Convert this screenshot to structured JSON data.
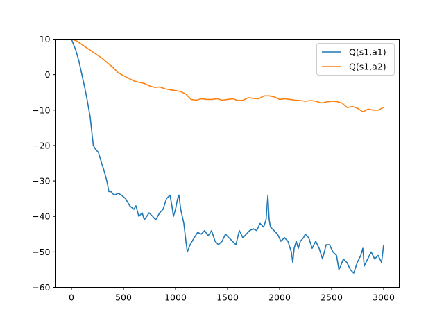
{
  "chart_data": {
    "type": "line",
    "title": "",
    "xlabel": "",
    "ylabel": "",
    "xlim": [
      -150,
      3150
    ],
    "ylim": [
      -60,
      10
    ],
    "grid": false,
    "legend_position": "upper right",
    "x_ticks": [
      0,
      500,
      1000,
      1500,
      2000,
      2500,
      3000
    ],
    "x_tick_labels": [
      "0",
      "500",
      "1000",
      "1500",
      "2000",
      "2500",
      "3000"
    ],
    "y_ticks": [
      10,
      0,
      -10,
      -20,
      -30,
      -40,
      -50,
      -60
    ],
    "y_tick_labels": [
      "10",
      "0",
      "−10",
      "−20",
      "−30",
      "−40",
      "−50",
      "−60"
    ],
    "series": [
      {
        "name": "Q(s1,a1)",
        "color": "#1f77b4",
        "x": [
          0,
          40,
          70,
          100,
          130,
          150,
          180,
          210,
          230,
          260,
          290,
          313,
          340,
          360,
          380,
          410,
          450,
          480,
          520,
          560,
          600,
          620,
          647,
          680,
          700,
          747,
          780,
          810,
          847,
          880,
          913,
          947,
          965,
          980,
          1000,
          1020,
          1033,
          1050,
          1080,
          1100,
          1113,
          1140,
          1180,
          1213,
          1247,
          1280,
          1313,
          1347,
          1380,
          1413,
          1447,
          1480,
          1513,
          1547,
          1580,
          1613,
          1647,
          1680,
          1713,
          1747,
          1780,
          1813,
          1847,
          1870,
          1887,
          1900,
          1913,
          1947,
          1980,
          2013,
          2047,
          2080,
          2113,
          2127,
          2140,
          2160,
          2180,
          2200,
          2230,
          2247,
          2280,
          2313,
          2347,
          2380,
          2413,
          2447,
          2480,
          2513,
          2547,
          2570,
          2587,
          2613,
          2647,
          2680,
          2713,
          2747,
          2780,
          2800,
          2813,
          2847,
          2880,
          2913,
          2947,
          2980,
          3000
        ],
        "y": [
          10,
          7,
          4,
          0,
          -4,
          -7,
          -12,
          -20,
          -21,
          -22,
          -25,
          -27,
          -30,
          -33,
          -33,
          -34,
          -33.5,
          -34,
          -35,
          -37,
          -38,
          -37,
          -40,
          -39,
          -41,
          -39,
          -40,
          -41,
          -39,
          -38,
          -35,
          -34,
          -37,
          -40,
          -38,
          -35,
          -34,
          -38,
          -42,
          -47,
          -50,
          -48,
          -46,
          -44.5,
          -45,
          -44,
          -45.5,
          -44,
          -47,
          -48,
          -47,
          -45,
          -46,
          -47,
          -48,
          -44,
          -46,
          -45,
          -44,
          -43.5,
          -44,
          -42,
          -43,
          -41,
          -34,
          -41,
          -43,
          -44,
          -45,
          -47,
          -46,
          -47,
          -50,
          -53,
          -49,
          -47,
          -49,
          -47,
          -46,
          -45,
          -46,
          -49,
          -47,
          -49,
          -52,
          -48,
          -48,
          -50,
          -51,
          -55,
          -54,
          -52,
          -53,
          -55,
          -56,
          -53,
          -51,
          -49,
          -54,
          -52,
          -50,
          -52,
          -51,
          -53,
          -48
        ]
      },
      {
        "name": "Q(s1,a2)",
        "color": "#ff7f0e",
        "x": [
          0,
          50,
          100,
          150,
          200,
          250,
          300,
          350,
          400,
          450,
          500,
          550,
          600,
          650,
          700,
          750,
          800,
          850,
          900,
          950,
          1000,
          1050,
          1100,
          1150,
          1200,
          1250,
          1300,
          1350,
          1400,
          1450,
          1500,
          1550,
          1600,
          1650,
          1700,
          1750,
          1800,
          1850,
          1900,
          1950,
          2000,
          2050,
          2100,
          2150,
          2200,
          2250,
          2300,
          2350,
          2400,
          2450,
          2500,
          2550,
          2600,
          2650,
          2700,
          2750,
          2800,
          2850,
          2900,
          2950,
          3000
        ],
        "y": [
          10,
          9.5,
          8.5,
          7.5,
          6.5,
          5.5,
          4.5,
          3.2,
          2,
          0.5,
          -0.3,
          -1,
          -1.8,
          -2.2,
          -2.5,
          -3.2,
          -3.6,
          -3.5,
          -4,
          -4.3,
          -4.5,
          -4.8,
          -5.5,
          -7,
          -7.2,
          -6.8,
          -7,
          -7,
          -6.8,
          -7.2,
          -7,
          -6.8,
          -7.3,
          -7.2,
          -6.5,
          -6.7,
          -6.8,
          -6,
          -6,
          -6.3,
          -7,
          -6.8,
          -7,
          -7.2,
          -7.3,
          -7.5,
          -7.3,
          -7.5,
          -8,
          -7.7,
          -7.5,
          -7.6,
          -8,
          -9.3,
          -9,
          -9.5,
          -10.5,
          -9.7,
          -10,
          -10,
          -9.2
        ]
      }
    ]
  }
}
